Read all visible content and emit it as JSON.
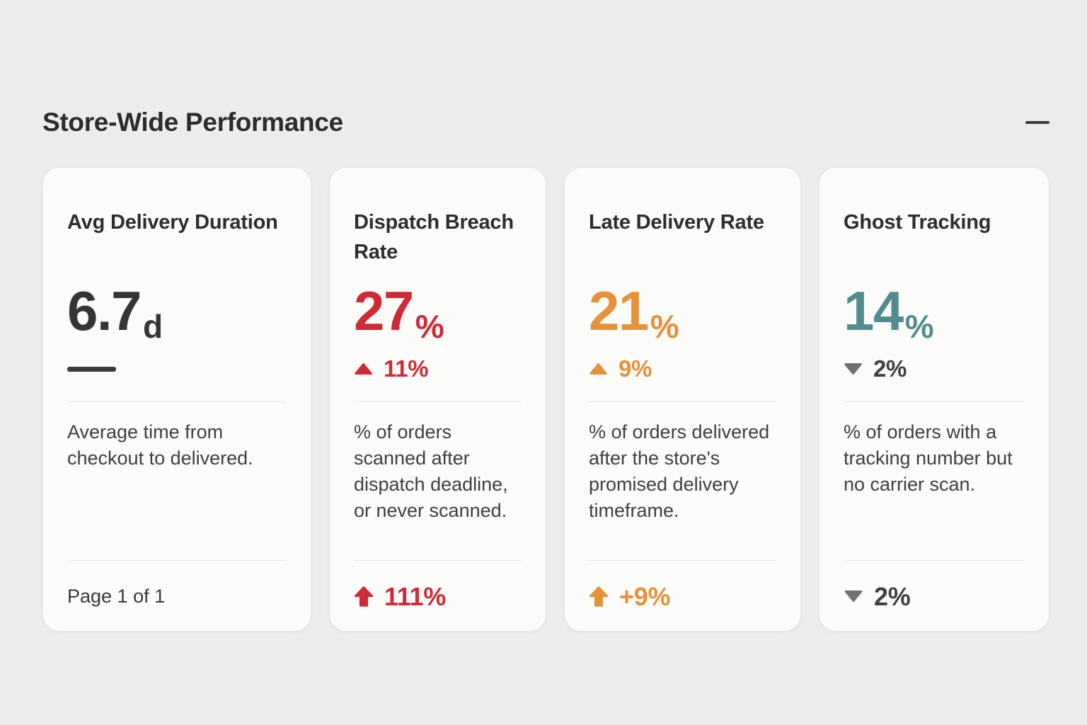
{
  "header": {
    "title": "Store-Wide Performance",
    "collapse_icon": "minus-icon"
  },
  "colors": {
    "red": "#CE2B37",
    "orange": "#E5923A",
    "teal": "#538C8F",
    "gray_icon": "#6F7173",
    "dark_text": "#3E4041",
    "value_dark": "#333536"
  },
  "cards": [
    {
      "id": "avg-delivery-duration",
      "title": "Avg Delivery Duration",
      "value": "6.7",
      "suffix": "d",
      "value_color": "#333536",
      "delta": {
        "icon": "dash",
        "text": "",
        "icon_color": "#3A3A3C",
        "text_color": "#3A3A3C"
      },
      "description": "Average time from checkout to delivered.",
      "footer": {
        "icon": "none",
        "text": "Page 1 of 1",
        "icon_color": "",
        "text_color": "#37393A"
      }
    },
    {
      "id": "dispatch-breach-rate",
      "title": "Dispatch Breach Rate",
      "value": "27",
      "suffix": "%",
      "value_color": "#CE2B37",
      "delta": {
        "icon": "triangle-up",
        "text": "11%",
        "icon_color": "#CE2B37",
        "text_color": "#CE2B37"
      },
      "description": "% of orders scanned after dispatch deadline, or never scanned.",
      "footer": {
        "icon": "arrow-up",
        "text": "111%",
        "icon_color": "#CE2B37",
        "text_color": "#CE2B37"
      }
    },
    {
      "id": "late-delivery-rate",
      "title": "Late Delivery Rate",
      "value": "21",
      "suffix": "%",
      "value_color": "#E5923A",
      "delta": {
        "icon": "triangle-up",
        "text": "9%",
        "icon_color": "#E5923A",
        "text_color": "#E5923A"
      },
      "description": "% of orders delivered after the store's promised delivery timeframe.",
      "footer": {
        "icon": "arrow-up",
        "text": "+9%",
        "icon_color": "#E5923A",
        "text_color": "#E5923A"
      }
    },
    {
      "id": "ghost-tracking",
      "title": "Ghost Tracking",
      "value": "14",
      "suffix": "%",
      "value_color": "#538C8F",
      "delta": {
        "icon": "triangle-down",
        "text": "2%",
        "icon_color": "#6F7173",
        "text_color": "#3E4041"
      },
      "description": "% of orders with a tracking number but no carrier scan.",
      "footer": {
        "icon": "triangle-down",
        "text": "2%",
        "icon_color": "#6F7173",
        "text_color": "#3E4041"
      }
    }
  ]
}
